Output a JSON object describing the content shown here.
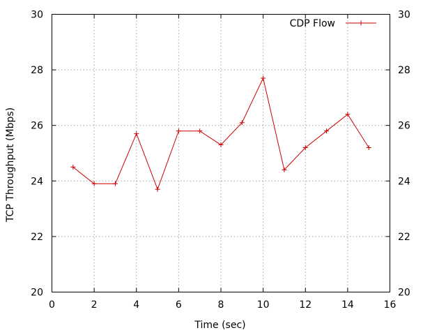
{
  "chart_data": {
    "type": "line",
    "xlabel": "Time (sec)",
    "ylabel": "TCP Throughput (Mbps)",
    "xlim": [
      0,
      16
    ],
    "ylim": [
      20,
      30
    ],
    "x_ticks": [
      0,
      2,
      4,
      6,
      8,
      10,
      12,
      14,
      16
    ],
    "y_ticks": [
      20,
      22,
      24,
      26,
      28,
      30
    ],
    "x_tick_labels": [
      "0",
      "2",
      "4",
      "6",
      "8",
      "10",
      "12",
      "14",
      "16"
    ],
    "y_tick_labels": [
      "20",
      "22",
      "24",
      "26",
      "28",
      "30"
    ],
    "y2_tick_labels": [
      "20",
      "22",
      "24",
      "26",
      "28",
      "30"
    ],
    "grid": true,
    "legend_position": "top-right",
    "series": [
      {
        "name": "CDP Flow",
        "color": "#cc0000",
        "marker": "plus",
        "x": [
          1,
          2,
          3,
          4,
          5,
          6,
          7,
          8,
          9,
          10,
          11,
          12,
          13,
          14,
          15
        ],
        "y": [
          24.5,
          23.9,
          23.9,
          25.7,
          23.7,
          25.8,
          25.8,
          25.3,
          26.1,
          27.7,
          24.4,
          25.2,
          25.8,
          26.4,
          25.2
        ]
      }
    ]
  }
}
